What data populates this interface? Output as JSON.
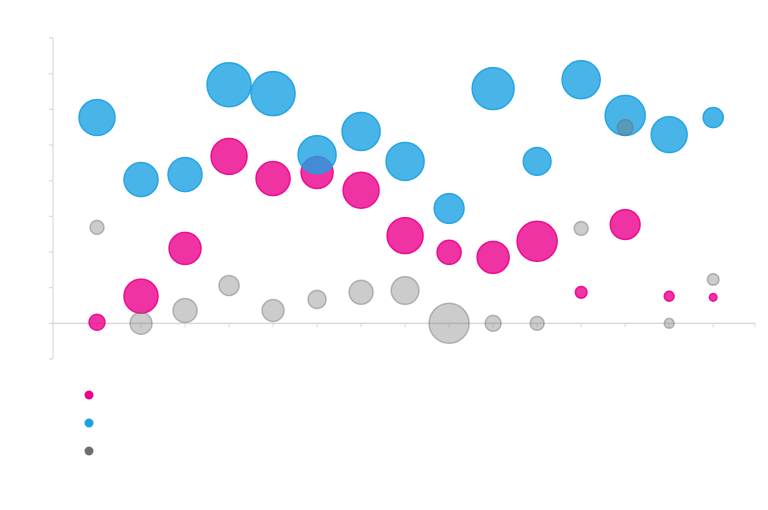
{
  "chart_data": {
    "type": "scatter",
    "subtype": "bubble",
    "title": "",
    "xlabel": "",
    "ylabel": "",
    "x": [
      1,
      2,
      3,
      4,
      5,
      6,
      7,
      8,
      9,
      10,
      11,
      12,
      13,
      14,
      15
    ],
    "xlim": [
      0,
      15.95
    ],
    "ylim": [
      -1,
      8
    ],
    "grid": false,
    "legend": "bottom-left",
    "series": [
      {
        "color": "#ec008c",
        "y": [
          0.03,
          0.76,
          2.1,
          4.68,
          4.06,
          4.23,
          3.73,
          2.46,
          1.99,
          1.85,
          2.3,
          0.87,
          2.77,
          0.76,
          0.73
        ],
        "size": [
          13,
          60,
          53,
          67,
          60,
          53,
          67,
          67,
          30,
          53,
          83,
          7,
          46,
          5,
          3
        ]
      },
      {
        "color": "#1ba1e2",
        "y": [
          5.77,
          4.03,
          4.17,
          6.69,
          6.44,
          4.73,
          5.38,
          4.54,
          3.22,
          6.58,
          4.54,
          6.83,
          5.83,
          5.29,
          5.77
        ],
        "size": [
          67,
          60,
          60,
          100,
          100,
          75,
          75,
          75,
          46,
          91,
          40,
          75,
          83,
          67,
          21
        ]
      },
      {
        "color": "#6d6e71",
        "y": [
          2.69,
          0,
          0.36,
          1.06,
          0.36,
          0.67,
          0.87,
          0.92,
          0,
          0,
          0,
          2.66,
          5.49,
          0,
          1.23
        ],
        "size": [
          10,
          25,
          30,
          21,
          25,
          17,
          30,
          40,
          83,
          13,
          10,
          10,
          13,
          5,
          7
        ]
      }
    ]
  }
}
